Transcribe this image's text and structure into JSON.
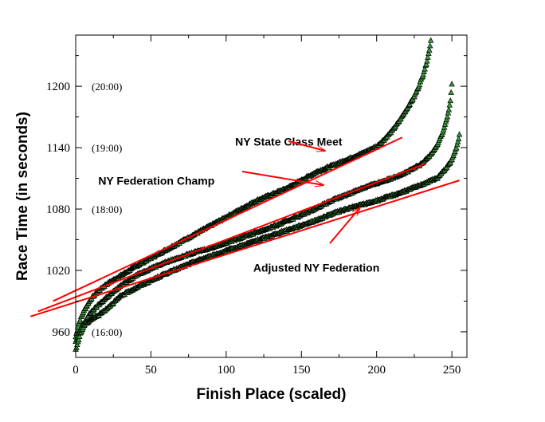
{
  "chart_data": {
    "type": "scatter",
    "xlabel": "Finish Place (scaled)",
    "ylabel": "Race Time (in seconds)",
    "xlim": [
      0,
      260
    ],
    "ylim": [
      935,
      1250
    ],
    "xticks": [
      0,
      50,
      100,
      150,
      200,
      250
    ],
    "yticks": [
      960,
      1020,
      1080,
      1140,
      1200
    ],
    "time_labels": [
      {
        "text": "(20:00)",
        "y": 1200
      },
      {
        "text": "(19:00)",
        "y": 1140
      },
      {
        "text": "(18:00)",
        "y": 1080
      },
      {
        "text": "(16:00)",
        "y": 960
      }
    ],
    "annotations": [
      {
        "text": "NY State Class Meet",
        "x": 106,
        "y": 1142
      },
      {
        "text": "NY Federation Champ",
        "x": 15,
        "y": 1104
      },
      {
        "text": "Adjusted NY Federation",
        "x": 118,
        "y": 1019
      }
    ],
    "series": [
      {
        "color": "#000000",
        "points": [
          [
            0,
            955
          ],
          [
            2,
            968
          ],
          [
            4,
            976
          ],
          [
            6,
            982
          ],
          [
            10,
            992
          ],
          [
            15,
            1000
          ],
          [
            20,
            1006
          ],
          [
            30,
            1015
          ],
          [
            40,
            1024
          ],
          [
            50,
            1032
          ],
          [
            60,
            1040
          ],
          [
            70,
            1048
          ],
          [
            80,
            1056
          ],
          [
            90,
            1064
          ],
          [
            100,
            1072
          ],
          [
            110,
            1080
          ],
          [
            120,
            1088
          ],
          [
            130,
            1094
          ],
          [
            140,
            1100
          ],
          [
            150,
            1108
          ],
          [
            160,
            1116
          ],
          [
            170,
            1122
          ],
          [
            180,
            1128
          ],
          [
            190,
            1134
          ],
          [
            200,
            1141
          ],
          [
            205,
            1148
          ],
          [
            210,
            1156
          ],
          [
            215,
            1166
          ],
          [
            220,
            1178
          ],
          [
            225,
            1190
          ],
          [
            228,
            1200
          ],
          [
            231,
            1212
          ],
          [
            233,
            1222
          ],
          [
            235,
            1235
          ],
          [
            236,
            1245
          ]
        ],
        "fit": {
          "x": [
            -15,
            217
          ],
          "y": [
            990,
            1150
          ]
        }
      },
      {
        "color": "#000000",
        "points": [
          [
            0,
            950
          ],
          [
            3,
            962
          ],
          [
            6,
            970
          ],
          [
            10,
            979
          ],
          [
            15,
            986
          ],
          [
            20,
            993
          ],
          [
            30,
            1005
          ],
          [
            40,
            1015
          ],
          [
            50,
            1022
          ],
          [
            60,
            1028
          ],
          [
            70,
            1033
          ],
          [
            80,
            1038
          ],
          [
            90,
            1042
          ],
          [
            100,
            1047
          ],
          [
            110,
            1052
          ],
          [
            120,
            1057
          ],
          [
            130,
            1062
          ],
          [
            140,
            1068
          ],
          [
            150,
            1074
          ],
          [
            160,
            1081
          ],
          [
            170,
            1088
          ],
          [
            180,
            1094
          ],
          [
            190,
            1100
          ],
          [
            200,
            1105
          ],
          [
            210,
            1110
          ],
          [
            220,
            1116
          ],
          [
            230,
            1124
          ],
          [
            235,
            1132
          ],
          [
            240,
            1142
          ],
          [
            244,
            1155
          ],
          [
            247,
            1170
          ],
          [
            249,
            1185
          ],
          [
            250,
            1202
          ]
        ],
        "fit": {
          "x": [
            -25,
            232
          ],
          "y": [
            980,
            1124
          ]
        }
      },
      {
        "color": "#000000",
        "points": [
          [
            0,
            942
          ],
          [
            3,
            958
          ],
          [
            6,
            967
          ],
          [
            10,
            972
          ],
          [
            15,
            976
          ],
          [
            20,
            982
          ],
          [
            30,
            995
          ],
          [
            40,
            1003
          ],
          [
            50,
            1010
          ],
          [
            60,
            1017
          ],
          [
            70,
            1023
          ],
          [
            80,
            1029
          ],
          [
            90,
            1034
          ],
          [
            100,
            1039
          ],
          [
            110,
            1044
          ],
          [
            120,
            1049
          ],
          [
            130,
            1054
          ],
          [
            140,
            1059
          ],
          [
            150,
            1064
          ],
          [
            160,
            1069
          ],
          [
            170,
            1075
          ],
          [
            180,
            1080
          ],
          [
            190,
            1084
          ],
          [
            200,
            1088
          ],
          [
            210,
            1093
          ],
          [
            220,
            1098
          ],
          [
            230,
            1104
          ],
          [
            240,
            1110
          ],
          [
            245,
            1118
          ],
          [
            250,
            1128
          ],
          [
            253,
            1140
          ],
          [
            255,
            1152
          ]
        ],
        "fit": {
          "x": [
            -30,
            255
          ],
          "y": [
            975,
            1108
          ]
        }
      }
    ]
  }
}
